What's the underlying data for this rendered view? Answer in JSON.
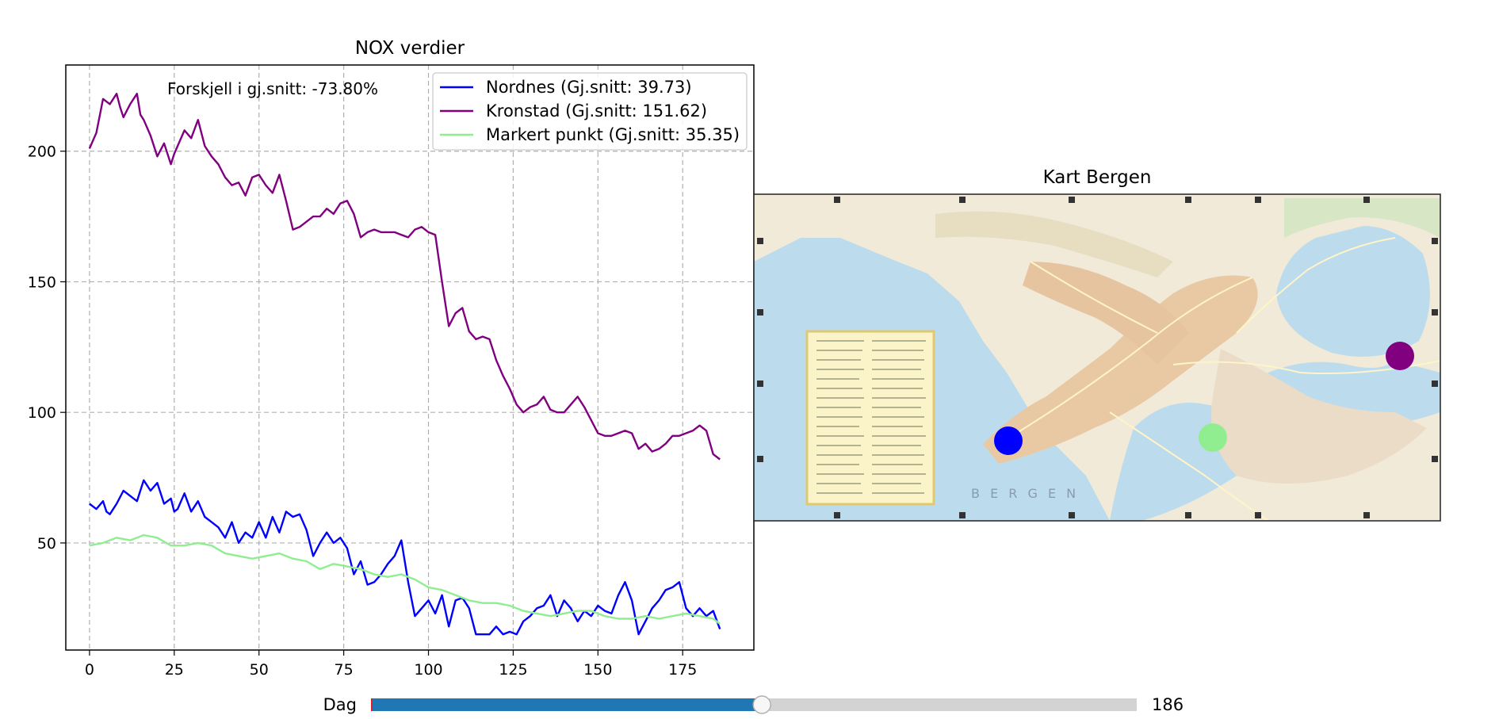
{
  "chart_data": [
    {
      "type": "line",
      "title": "NOX verdier",
      "xlabel": "",
      "ylabel": "",
      "xlim": [
        -7,
        196
      ],
      "ylim": [
        9,
        233
      ],
      "xticks": [
        0,
        25,
        50,
        75,
        100,
        125,
        150,
        175
      ],
      "yticks": [
        50,
        100,
        150,
        200
      ],
      "grid": true,
      "legend": "top-right",
      "annotation": "Forskjell i gj.snitt: -73.80%",
      "series": [
        {
          "name": "Nordnes (Gj.snitt: 39.73)",
          "color": "#0000ff",
          "x": [
            0,
            2,
            4,
            5,
            6,
            8,
            10,
            12,
            14,
            16,
            18,
            20,
            22,
            24,
            25,
            26,
            28,
            30,
            32,
            34,
            36,
            38,
            40,
            42,
            44,
            46,
            48,
            50,
            52,
            54,
            56,
            58,
            60,
            62,
            64,
            66,
            68,
            70,
            72,
            74,
            76,
            78,
            80,
            82,
            84,
            86,
            88,
            90,
            92,
            94,
            96,
            98,
            100,
            102,
            104,
            106,
            108,
            110,
            112,
            114,
            116,
            118,
            120,
            122,
            124,
            126,
            128,
            130,
            132,
            134,
            136,
            138,
            140,
            142,
            144,
            146,
            148,
            150,
            152,
            154,
            156,
            158,
            160,
            162,
            164,
            166,
            168,
            170,
            172,
            174,
            176,
            178,
            180,
            182,
            184,
            186
          ],
          "values": [
            65,
            63,
            66,
            62,
            61,
            65,
            70,
            68,
            66,
            74,
            70,
            73,
            65,
            67,
            62,
            63,
            69,
            62,
            66,
            60,
            58,
            56,
            52,
            58,
            50,
            54,
            52,
            58,
            52,
            60,
            54,
            62,
            60,
            61,
            55,
            45,
            50,
            54,
            50,
            52,
            48,
            38,
            43,
            34,
            35,
            38,
            42,
            45,
            51,
            35,
            22,
            25,
            28,
            23,
            30,
            18,
            28,
            29,
            25,
            15,
            15,
            15,
            18,
            15,
            16,
            15,
            20,
            22,
            25,
            26,
            30,
            22,
            28,
            25,
            20,
            24,
            22,
            26,
            24,
            23,
            30,
            35,
            28,
            15,
            20,
            25,
            28,
            32,
            33,
            35,
            25,
            22,
            25,
            22,
            24,
            17
          ]
        },
        {
          "name": "Kronstad (Gj.snitt: 151.62)",
          "color": "#800080",
          "x": [
            0,
            2,
            4,
            6,
            8,
            9,
            10,
            12,
            14,
            15,
            16,
            18,
            20,
            22,
            23,
            24,
            25,
            26,
            28,
            30,
            32,
            34,
            36,
            38,
            40,
            42,
            44,
            46,
            48,
            50,
            52,
            54,
            56,
            58,
            60,
            62,
            64,
            66,
            68,
            70,
            72,
            74,
            76,
            78,
            80,
            82,
            84,
            86,
            88,
            90,
            92,
            94,
            96,
            98,
            100,
            102,
            104,
            106,
            108,
            110,
            112,
            114,
            116,
            118,
            120,
            122,
            124,
            126,
            128,
            130,
            132,
            134,
            136,
            138,
            140,
            142,
            144,
            146,
            148,
            150,
            152,
            154,
            156,
            158,
            160,
            162,
            164,
            166,
            168,
            170,
            172,
            174,
            176,
            178,
            180,
            182,
            184,
            186
          ],
          "values": [
            201,
            207,
            220,
            218,
            222,
            217,
            213,
            218,
            222,
            214,
            212,
            206,
            198,
            203,
            199,
            195,
            199,
            202,
            208,
            205,
            212,
            202,
            198,
            195,
            190,
            187,
            188,
            183,
            190,
            191,
            187,
            184,
            191,
            181,
            170,
            171,
            173,
            175,
            175,
            178,
            176,
            180,
            181,
            176,
            167,
            169,
            170,
            169,
            169,
            169,
            168,
            167,
            170,
            171,
            169,
            168,
            150,
            133,
            138,
            140,
            131,
            128,
            129,
            128,
            120,
            114,
            109,
            103,
            100,
            102,
            103,
            106,
            101,
            100,
            100,
            103,
            106,
            102,
            97,
            92,
            91,
            91,
            92,
            93,
            92,
            86,
            88,
            85,
            86,
            88,
            91,
            91,
            92,
            93,
            95,
            93,
            84,
            82
          ]
        },
        {
          "name": "Markert punkt (Gj.snitt: 35.35)",
          "color": "#90ee90",
          "x": [
            0,
            4,
            8,
            12,
            16,
            20,
            24,
            28,
            32,
            36,
            40,
            44,
            48,
            52,
            56,
            60,
            64,
            68,
            72,
            76,
            80,
            84,
            88,
            92,
            96,
            100,
            104,
            108,
            112,
            116,
            120,
            124,
            128,
            132,
            136,
            140,
            144,
            148,
            152,
            156,
            160,
            164,
            168,
            172,
            176,
            180,
            184,
            186
          ],
          "values": [
            49,
            50,
            52,
            51,
            53,
            52,
            49,
            49,
            50,
            49,
            46,
            45,
            44,
            45,
            46,
            44,
            43,
            40,
            42,
            41,
            40,
            38,
            37,
            38,
            36,
            33,
            32,
            30,
            28,
            27,
            27,
            26,
            24,
            23,
            22,
            23,
            24,
            24,
            22,
            21,
            21,
            22,
            21,
            22,
            23,
            22,
            21,
            19
          ]
        }
      ]
    },
    {
      "type": "map",
      "title": "Kart Bergen",
      "map_text": "B E R G E N",
      "markers": [
        {
          "color": "#0000ff",
          "label": "Nordnes"
        },
        {
          "color": "#800080",
          "label": "Kronstad"
        },
        {
          "color": "#90ee90",
          "label": "Markert punkt"
        }
      ]
    }
  ],
  "slider": {
    "label": "Dag",
    "value": 186,
    "value_text": "186",
    "fraction": 0.51,
    "fill_color": "#1f77b4",
    "track_color": "#d3d3d3"
  }
}
